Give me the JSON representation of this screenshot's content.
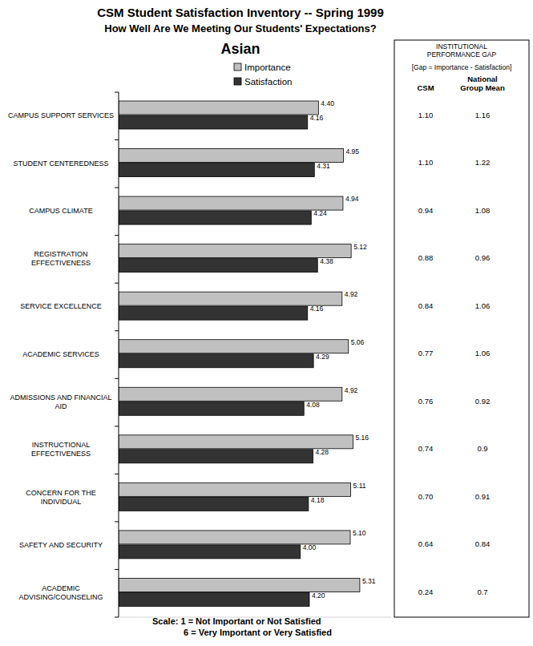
{
  "chart_data": {
    "type": "bar",
    "orientation": "horizontal",
    "title": "CSM Student Satisfaction Inventory -- Spring 1999",
    "subtitle": [
      "How Well Are We Meeting Our Students' Expectations?",
      "Asian"
    ],
    "annotations": [
      "Scale: 1 = Not Important or Not Satisfied",
      "6 = Very Important or Very Satisfied"
    ],
    "categories": [
      "CAMPUS SUPPORT SERVICES",
      "STUDENT CENTEREDNESS",
      "CAMPUS CLIMATE",
      "REGISTRATION EFFECTIVENESS",
      "SERVICE EXCELLENCE",
      "ACADEMIC SERVICES",
      "ADMISSIONS AND FINANCIAL AID",
      "INSTRUCTIONAL EFFECTIVENESS",
      "CONCERN FOR THE INDIVIDUAL",
      "SAFETY AND SECURITY",
      "ACADEMIC ADVISING/COUNSELING"
    ],
    "series": [
      {
        "name": "Importance",
        "color": "#c0c0c0",
        "values": [
          4.4,
          4.95,
          4.94,
          5.12,
          4.92,
          5.06,
          4.92,
          5.16,
          5.11,
          5.1,
          5.31
        ],
        "value_labels": [
          "4.40",
          "4.95",
          "4.94",
          "5.12",
          "4.92",
          "5.06",
          "4.92",
          "5.16",
          "5.11",
          "5.10",
          "5.31"
        ]
      },
      {
        "name": "Satisfaction",
        "color": "#333333",
        "values": [
          4.16,
          4.31,
          4.24,
          4.38,
          4.16,
          4.29,
          4.08,
          4.28,
          4.18,
          4.0,
          4.2
        ],
        "value_labels": [
          "4.16",
          "4.31",
          "4.24",
          "4.38",
          "4.16",
          "4.29",
          "4.08",
          "4.28",
          "4.18",
          "4.00",
          "4.20"
        ]
      }
    ],
    "xlim": [
      0,
      6
    ],
    "tick_labels": false,
    "data_labels": true,
    "legend": "top",
    "grid": false
  },
  "gap_table": {
    "title": "INSTITUTIONAL PERFORMANCE GAP",
    "subtitle": "[Gap = Importance - Satisfaction]",
    "columns": [
      "CSM",
      "National Group Mean"
    ],
    "rows": [
      [
        "1.10",
        "1.16"
      ],
      [
        "1.10",
        "1.22"
      ],
      [
        "0.94",
        "1.08"
      ],
      [
        "0.88",
        "0.96"
      ],
      [
        "0.84",
        "1.06"
      ],
      [
        "0.77",
        "1.06"
      ],
      [
        "0.76",
        "0.92"
      ],
      [
        "0.74",
        "0.9"
      ],
      [
        "0.70",
        "0.91"
      ],
      [
        "0.64",
        "0.84"
      ],
      [
        "0.24",
        "0.7"
      ]
    ]
  }
}
